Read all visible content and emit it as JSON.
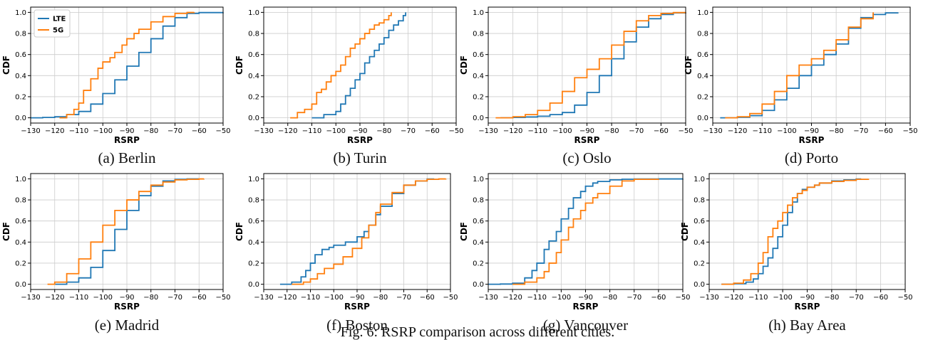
{
  "figure": {
    "caption": "Fig. 6: RSRP comparison across different cities."
  },
  "colors": {
    "LTE": "#1f77b4",
    "5G": "#ff7f0e",
    "grid": "#cccccc"
  },
  "legend": {
    "placement": "upper-left",
    "entries": [
      "LTE",
      "5G"
    ]
  },
  "chart_data": [
    {
      "type": "line",
      "label": "(a) Berlin",
      "xlabel": "RSRP",
      "ylabel": "CDF",
      "xlim": [
        -130,
        -50
      ],
      "ylim": [
        0,
        1
      ],
      "grid": true,
      "step": true,
      "xticks": [
        -130,
        -120,
        -110,
        -100,
        -90,
        -80,
        -70,
        -60,
        -50
      ],
      "yticks": [
        0.0,
        0.2,
        0.4,
        0.6,
        0.8,
        1.0
      ],
      "series": [
        {
          "name": "LTE",
          "x": [
            -130,
            -125,
            -120,
            -115,
            -110,
            -105,
            -100,
            -95,
            -90,
            -85,
            -80,
            -75,
            -70,
            -65,
            -60,
            -50
          ],
          "y": [
            0.0,
            0.003,
            0.01,
            0.03,
            0.06,
            0.13,
            0.23,
            0.36,
            0.49,
            0.62,
            0.75,
            0.87,
            0.95,
            0.99,
            0.998,
            1.0
          ]
        },
        {
          "name": "5G",
          "x": [
            -118,
            -115,
            -112,
            -110,
            -108,
            -105,
            -102,
            -100,
            -97,
            -95,
            -92,
            -90,
            -87,
            -85,
            -80,
            -75,
            -70,
            -65,
            -62
          ],
          "y": [
            0.0,
            0.03,
            0.08,
            0.14,
            0.26,
            0.37,
            0.47,
            0.53,
            0.57,
            0.62,
            0.69,
            0.75,
            0.8,
            0.84,
            0.91,
            0.96,
            0.99,
            0.999,
            1.0
          ]
        }
      ]
    },
    {
      "type": "line",
      "label": "(b) Turin",
      "xlabel": "RSRP",
      "ylabel": "CDF",
      "xlim": [
        -130,
        -50
      ],
      "ylim": [
        0,
        1
      ],
      "grid": true,
      "step": true,
      "xticks": [
        -130,
        -120,
        -110,
        -100,
        -90,
        -80,
        -70,
        -60,
        -50
      ],
      "yticks": [
        0.0,
        0.2,
        0.4,
        0.6,
        0.8,
        1.0
      ],
      "series": [
        {
          "name": "LTE",
          "x": [
            -110,
            -105,
            -100,
            -98,
            -96,
            -94,
            -92,
            -90,
            -88,
            -86,
            -84,
            -82,
            -80,
            -78,
            -76,
            -74,
            -72,
            -71
          ],
          "y": [
            0.0,
            0.03,
            0.06,
            0.13,
            0.21,
            0.28,
            0.36,
            0.42,
            0.52,
            0.58,
            0.64,
            0.7,
            0.76,
            0.83,
            0.88,
            0.92,
            0.97,
            1.0
          ]
        },
        {
          "name": "5G",
          "x": [
            -119,
            -116,
            -113,
            -110,
            -108,
            -106,
            -104,
            -102,
            -100,
            -98,
            -96,
            -94,
            -92,
            -90,
            -88,
            -86,
            -84,
            -82,
            -80,
            -78,
            -77
          ],
          "y": [
            0.0,
            0.05,
            0.08,
            0.13,
            0.24,
            0.27,
            0.34,
            0.4,
            0.44,
            0.5,
            0.58,
            0.66,
            0.7,
            0.75,
            0.8,
            0.84,
            0.88,
            0.9,
            0.93,
            0.97,
            1.0
          ]
        }
      ]
    },
    {
      "type": "line",
      "label": "(c) Oslo",
      "xlabel": "RSRP",
      "ylabel": "CDF",
      "xlim": [
        -130,
        -50
      ],
      "ylim": [
        0,
        1
      ],
      "grid": true,
      "step": true,
      "xticks": [
        -130,
        -120,
        -110,
        -100,
        -90,
        -80,
        -70,
        -60,
        -50
      ],
      "yticks": [
        0.0,
        0.2,
        0.4,
        0.6,
        0.8,
        1.0
      ],
      "series": [
        {
          "name": "LTE",
          "x": [
            -125,
            -120,
            -115,
            -110,
            -105,
            -100,
            -95,
            -90,
            -85,
            -80,
            -75,
            -70,
            -65,
            -60,
            -55,
            -50
          ],
          "y": [
            0.0,
            0.003,
            0.008,
            0.015,
            0.03,
            0.05,
            0.12,
            0.24,
            0.4,
            0.56,
            0.72,
            0.86,
            0.94,
            0.98,
            0.995,
            1.0
          ]
        },
        {
          "name": "5G",
          "x": [
            -127,
            -120,
            -115,
            -110,
            -105,
            -100,
            -95,
            -90,
            -85,
            -80,
            -75,
            -70,
            -65,
            -60,
            -55,
            -50
          ],
          "y": [
            0.0,
            0.01,
            0.03,
            0.07,
            0.14,
            0.25,
            0.38,
            0.46,
            0.56,
            0.69,
            0.82,
            0.92,
            0.97,
            0.99,
            0.998,
            1.0
          ]
        }
      ]
    },
    {
      "type": "line",
      "label": "(d) Porto",
      "xlabel": "RSRP",
      "ylabel": "CDF",
      "xlim": [
        -130,
        -50
      ],
      "ylim": [
        0,
        1
      ],
      "grid": true,
      "step": true,
      "xticks": [
        -130,
        -120,
        -110,
        -100,
        -90,
        -80,
        -70,
        -60,
        -50
      ],
      "yticks": [
        0.0,
        0.2,
        0.4,
        0.6,
        0.8,
        1.0
      ],
      "series": [
        {
          "name": "LTE",
          "x": [
            -127,
            -120,
            -115,
            -110,
            -105,
            -100,
            -95,
            -90,
            -85,
            -80,
            -75,
            -70,
            -65,
            -60,
            -55
          ],
          "y": [
            0.0,
            0.005,
            0.02,
            0.07,
            0.17,
            0.28,
            0.4,
            0.5,
            0.6,
            0.7,
            0.85,
            0.95,
            0.98,
            0.995,
            1.0
          ]
        },
        {
          "name": "5G",
          "x": [
            -125,
            -120,
            -115,
            -110,
            -105,
            -100,
            -95,
            -90,
            -85,
            -80,
            -75,
            -70,
            -65
          ],
          "y": [
            0.0,
            0.01,
            0.04,
            0.13,
            0.25,
            0.4,
            0.5,
            0.56,
            0.64,
            0.74,
            0.86,
            0.94,
            1.0
          ]
        }
      ]
    },
    {
      "type": "line",
      "label": "(e) Madrid",
      "xlabel": "RSRP",
      "ylabel": "CDF",
      "xlim": [
        -130,
        -50
      ],
      "ylim": [
        0,
        1
      ],
      "grid": true,
      "step": true,
      "xticks": [
        -130,
        -120,
        -110,
        -100,
        -90,
        -80,
        -70,
        -60,
        -50
      ],
      "yticks": [
        0.0,
        0.2,
        0.4,
        0.6,
        0.8,
        1.0
      ],
      "series": [
        {
          "name": "LTE",
          "x": [
            -120,
            -115,
            -110,
            -105,
            -100,
            -95,
            -90,
            -85,
            -80,
            -75,
            -70,
            -65,
            -60
          ],
          "y": [
            0.0,
            0.02,
            0.06,
            0.16,
            0.32,
            0.52,
            0.7,
            0.84,
            0.93,
            0.98,
            0.995,
            0.999,
            1.0
          ]
        },
        {
          "name": "5G",
          "x": [
            -123,
            -120,
            -115,
            -110,
            -105,
            -100,
            -95,
            -90,
            -85,
            -80,
            -75,
            -70,
            -65,
            -60,
            -58
          ],
          "y": [
            0.0,
            0.02,
            0.1,
            0.24,
            0.4,
            0.56,
            0.7,
            0.8,
            0.88,
            0.94,
            0.97,
            0.99,
            0.995,
            0.999,
            1.0
          ]
        }
      ]
    },
    {
      "type": "line",
      "label": "(f) Boston",
      "xlabel": "RSRP",
      "ylabel": "CDF",
      "xlim": [
        -130,
        -50
      ],
      "ylim": [
        0,
        1
      ],
      "grid": true,
      "step": true,
      "xticks": [
        -130,
        -120,
        -110,
        -100,
        -90,
        -80,
        -70,
        -60,
        -50
      ],
      "yticks": [
        0.0,
        0.2,
        0.4,
        0.6,
        0.8,
        1.0
      ],
      "series": [
        {
          "name": "LTE",
          "x": [
            -123,
            -118,
            -114,
            -112,
            -110,
            -108,
            -105,
            -102,
            -100,
            -95,
            -90,
            -87,
            -85,
            -82,
            -80,
            -75,
            -70,
            -65,
            -60,
            -57
          ],
          "y": [
            0.0,
            0.02,
            0.07,
            0.13,
            0.2,
            0.28,
            0.33,
            0.35,
            0.37,
            0.4,
            0.45,
            0.5,
            0.56,
            0.66,
            0.74,
            0.86,
            0.94,
            0.98,
            0.998,
            1.0
          ]
        },
        {
          "name": "5G",
          "x": [
            -118,
            -113,
            -110,
            -107,
            -104,
            -100,
            -96,
            -92,
            -88,
            -85,
            -82,
            -80,
            -75,
            -70,
            -65,
            -60,
            -55,
            -52
          ],
          "y": [
            0.0,
            0.02,
            0.05,
            0.1,
            0.15,
            0.19,
            0.26,
            0.34,
            0.44,
            0.56,
            0.68,
            0.76,
            0.87,
            0.94,
            0.98,
            0.995,
            0.999,
            1.0
          ]
        }
      ]
    },
    {
      "type": "line",
      "label": "(g) Vancouver",
      "xlabel": "RSRP",
      "ylabel": "CDF",
      "xlim": [
        -130,
        -50
      ],
      "ylim": [
        0,
        1
      ],
      "grid": true,
      "step": true,
      "xticks": [
        -130,
        -120,
        -110,
        -100,
        -90,
        -80,
        -70,
        -60,
        -50
      ],
      "yticks": [
        0.0,
        0.2,
        0.4,
        0.6,
        0.8,
        1.0
      ],
      "series": [
        {
          "name": "LTE",
          "x": [
            -130,
            -125,
            -120,
            -115,
            -112,
            -110,
            -107,
            -105,
            -102,
            -100,
            -97,
            -95,
            -92,
            -90,
            -87,
            -85,
            -80,
            -75,
            -70,
            -60,
            -50
          ],
          "y": [
            0.0,
            0.002,
            0.01,
            0.06,
            0.13,
            0.2,
            0.33,
            0.41,
            0.5,
            0.62,
            0.72,
            0.82,
            0.88,
            0.93,
            0.96,
            0.975,
            0.99,
            0.996,
            0.998,
            0.999,
            1.0
          ]
        },
        {
          "name": "5G",
          "x": [
            -120,
            -115,
            -110,
            -107,
            -105,
            -102,
            -100,
            -97,
            -95,
            -92,
            -90,
            -87,
            -85,
            -80,
            -75,
            -70,
            -60
          ],
          "y": [
            0.0,
            0.02,
            0.06,
            0.12,
            0.2,
            0.3,
            0.42,
            0.54,
            0.62,
            0.7,
            0.77,
            0.82,
            0.86,
            0.93,
            0.98,
            0.995,
            1.0
          ]
        }
      ]
    },
    {
      "type": "line",
      "label": "(h) Bay Area",
      "xlabel": "RSRP",
      "ylabel": "CDF",
      "xlim": [
        -130,
        -50
      ],
      "ylim": [
        0,
        1
      ],
      "grid": true,
      "step": true,
      "xticks": [
        -130,
        -120,
        -110,
        -100,
        -90,
        -80,
        -70,
        -60,
        -50
      ],
      "yticks": [
        0.0,
        0.2,
        0.4,
        0.6,
        0.8,
        1.0
      ],
      "series": [
        {
          "name": "LTE",
          "x": [
            -125,
            -120,
            -115,
            -112,
            -110,
            -108,
            -106,
            -104,
            -102,
            -100,
            -98,
            -96,
            -94,
            -92,
            -90,
            -87,
            -85,
            -80,
            -75,
            -70,
            -68
          ],
          "y": [
            0.0,
            0.005,
            0.02,
            0.05,
            0.1,
            0.17,
            0.25,
            0.34,
            0.45,
            0.56,
            0.68,
            0.78,
            0.86,
            0.9,
            0.92,
            0.94,
            0.96,
            0.98,
            0.99,
            0.998,
            1.0
          ]
        },
        {
          "name": "5G",
          "x": [
            -125,
            -120,
            -116,
            -113,
            -110,
            -108,
            -106,
            -104,
            -102,
            -100,
            -98,
            -96,
            -94,
            -92,
            -90,
            -87,
            -85,
            -80,
            -75,
            -70,
            -65
          ],
          "y": [
            0.0,
            0.01,
            0.04,
            0.1,
            0.2,
            0.3,
            0.45,
            0.53,
            0.6,
            0.68,
            0.75,
            0.82,
            0.86,
            0.89,
            0.92,
            0.94,
            0.96,
            0.975,
            0.985,
            0.995,
            1.0
          ]
        }
      ]
    }
  ]
}
